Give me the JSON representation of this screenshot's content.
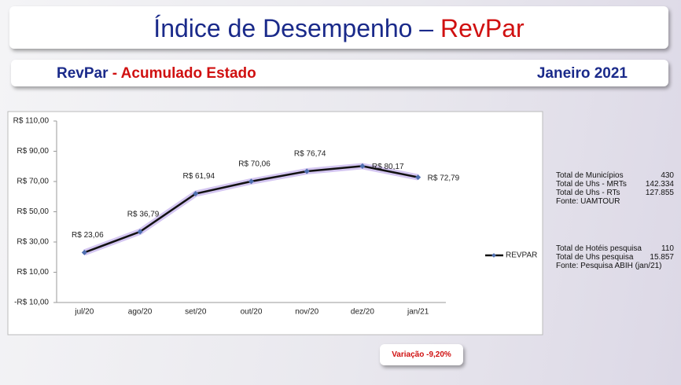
{
  "header": {
    "title": "Índice de Desempenho –",
    "title_highlight": "RevPar"
  },
  "subheader": {
    "label": "RevPar",
    "label_highlight": "- Acumulado Estado",
    "period": "Janeiro 2021"
  },
  "chart_data": {
    "type": "line",
    "categories": [
      "jul/20",
      "ago/20",
      "set/20",
      "out/20",
      "nov/20",
      "dez/20",
      "jan/21"
    ],
    "series": [
      {
        "name": "REVPAR",
        "color": "#111111",
        "marker_color": "#4f6fb0",
        "values": [
          23.06,
          36.79,
          61.94,
          70.06,
          76.74,
          80.17,
          72.79
        ],
        "value_labels": [
          "R$ 23,06",
          "R$ 36,79",
          "R$ 61,94",
          "R$ 70,06",
          "R$ 76,74",
          "R$ 80,17",
          "R$ 72,79"
        ]
      }
    ],
    "ylim": [
      -10,
      110
    ],
    "yticks": [
      {
        "value": -10,
        "label": "-R$ 10,00"
      },
      {
        "value": 10,
        "label": "R$ 10,00"
      },
      {
        "value": 30,
        "label": "R$ 30,00"
      },
      {
        "value": 50,
        "label": "R$ 50,00"
      },
      {
        "value": 70,
        "label": "R$ 70,00"
      },
      {
        "value": 90,
        "label": "R$ 90,00"
      },
      {
        "value": 110,
        "label": "R$ 110,00"
      }
    ],
    "grid": false,
    "legend": "right"
  },
  "info": [
    {
      "rows": [
        {
          "label": "Total de Municípios",
          "value": "430"
        },
        {
          "label": "Total de Uhs - MRTs",
          "value": "142.334"
        },
        {
          "label": "Total de Uhs - RTs",
          "value": "127.855"
        }
      ],
      "source": "Fonte: UAMTOUR"
    },
    {
      "rows": [
        {
          "label": "Total de Hotéis pesquisa",
          "value": "110"
        },
        {
          "label": "Total de Uhs pesquisa",
          "value": "15.857"
        }
      ],
      "source": "Fonte: Pesquisa ABIH (jan/21)"
    }
  ],
  "variation": "Variação -9,20%"
}
